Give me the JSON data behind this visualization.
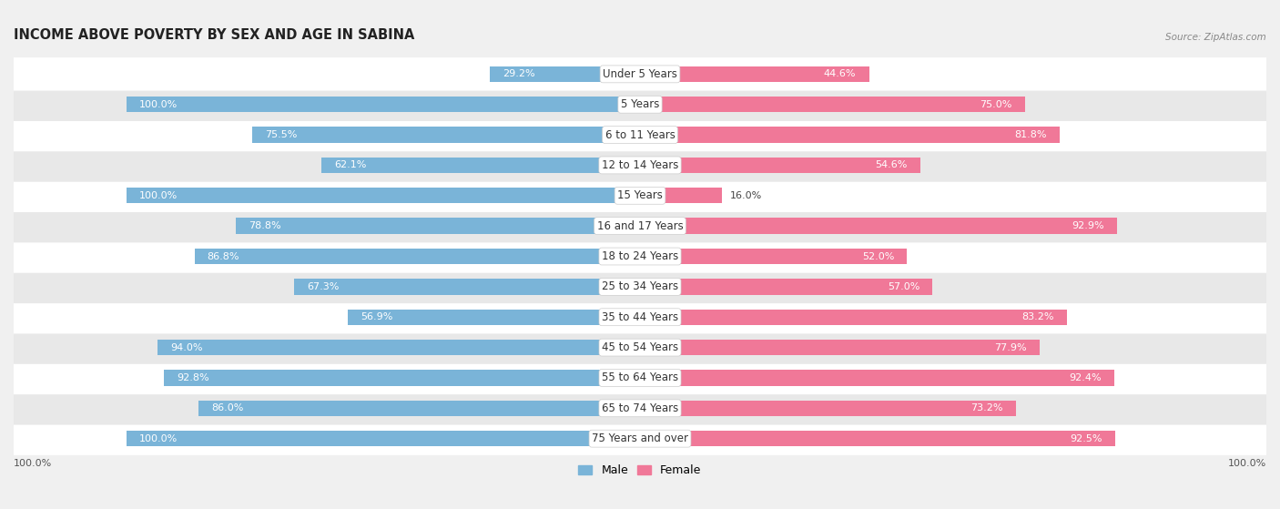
{
  "title": "INCOME ABOVE POVERTY BY SEX AND AGE IN SABINA",
  "source": "Source: ZipAtlas.com",
  "categories": [
    "Under 5 Years",
    "5 Years",
    "6 to 11 Years",
    "12 to 14 Years",
    "15 Years",
    "16 and 17 Years",
    "18 to 24 Years",
    "25 to 34 Years",
    "35 to 44 Years",
    "45 to 54 Years",
    "55 to 64 Years",
    "65 to 74 Years",
    "75 Years and over"
  ],
  "male_values": [
    29.2,
    100.0,
    75.5,
    62.1,
    100.0,
    78.8,
    86.8,
    67.3,
    56.9,
    94.0,
    92.8,
    86.0,
    100.0
  ],
  "female_values": [
    44.6,
    75.0,
    81.8,
    54.6,
    16.0,
    92.9,
    52.0,
    57.0,
    83.2,
    77.9,
    92.4,
    73.2,
    92.5
  ],
  "male_color": "#7ab4d8",
  "female_color": "#f07898",
  "male_label": "Male",
  "female_label": "Female",
  "background_color": "#f0f0f0",
  "row_bg_colors": [
    "#ffffff",
    "#e8e8e8"
  ],
  "max_value": 100.0,
  "title_fontsize": 10.5,
  "label_fontsize": 8.5,
  "value_fontsize": 8.0,
  "legend_fontsize": 9,
  "axis_label_fontsize": 8,
  "bar_height": 0.52
}
